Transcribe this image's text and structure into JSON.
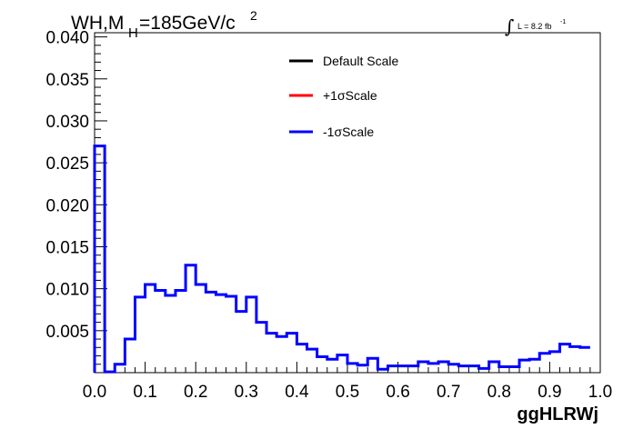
{
  "chart_data": {
    "type": "line",
    "title_main": "WH,M",
    "title_sub": "H",
    "title_value": "=185GeV/c",
    "title_sup": "2",
    "lumi_label": "L = 8.2 fb",
    "lumi_sup": "-1",
    "xlabel": "ggHLRWj",
    "ylabel": "",
    "xlim": [
      0.0,
      1.0
    ],
    "ylim": [
      0.0,
      0.0405
    ],
    "xticks": [
      "0.0",
      "0.1",
      "0.2",
      "0.3",
      "0.4",
      "0.5",
      "0.6",
      "0.7",
      "0.8",
      "0.9",
      "1.0"
    ],
    "yticks": [
      "0.005",
      "0.010",
      "0.015",
      "0.020",
      "0.025",
      "0.030",
      "0.035",
      "0.040"
    ],
    "grid": false,
    "legend_position": "top-center",
    "legend": [
      {
        "label": "Default Scale",
        "color": "#000000"
      },
      {
        "label": "+1σScale",
        "color": "#ff0000"
      },
      {
        "label": "-1σScale",
        "color": "#0000ff"
      }
    ],
    "bin_width": 0.02,
    "series": [
      {
        "name": "-1σScale",
        "color": "#0000ff",
        "values": [
          0.027,
          0.0001,
          0.001,
          0.004,
          0.009,
          0.0105,
          0.0098,
          0.0092,
          0.0098,
          0.0128,
          0.0105,
          0.0096,
          0.0093,
          0.0091,
          0.0073,
          0.009,
          0.006,
          0.0047,
          0.0043,
          0.0047,
          0.0034,
          0.0028,
          0.0019,
          0.0016,
          0.0021,
          0.0011,
          0.0009,
          0.0017,
          0.0004,
          0.0008,
          0.0008,
          0.0008,
          0.0013,
          0.0011,
          0.0013,
          0.001,
          0.0008,
          0.0008,
          0.0005,
          0.0013,
          0.0007,
          0.0007,
          0.0015,
          0.0016,
          0.0023,
          0.0025,
          0.0034,
          0.0031,
          0.003
        ]
      }
    ]
  }
}
